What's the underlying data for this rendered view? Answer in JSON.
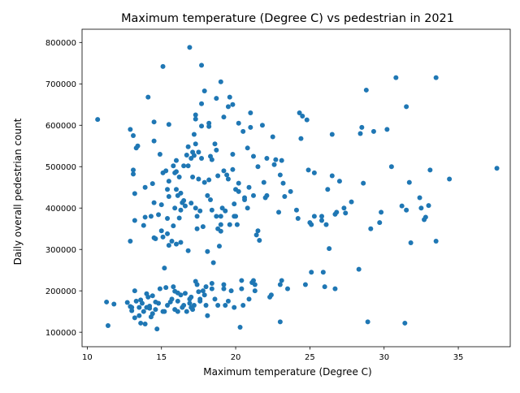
{
  "chart_data": {
    "type": "scatter",
    "title": "Maximum temperature (Degree C) vs pedestrian in 2021",
    "xlabel": "Maximum temperature (Degree C)",
    "ylabel": "Daily overall pedestrian count",
    "xlim": [
      9.65,
      38.5
    ],
    "ylim": [
      65000,
      832000
    ],
    "xticks": [
      10,
      15,
      20,
      25,
      30,
      35
    ],
    "yticks": [
      100000,
      200000,
      300000,
      400000,
      500000,
      600000,
      700000,
      800000
    ],
    "xtick_labels": [
      "10",
      "15",
      "20",
      "25",
      "30",
      "35"
    ],
    "ytick_labels": [
      "100000",
      "200000",
      "300000",
      "400000",
      "500000",
      "600000",
      "700000",
      "800000"
    ],
    "grid": false,
    "legend": "none",
    "marker_color": "#1f77b4",
    "points": [
      [
        10.7,
        614000
      ],
      [
        11.3,
        173000
      ],
      [
        11.4,
        116000
      ],
      [
        11.8,
        168000
      ],
      [
        12.7,
        172000
      ],
      [
        12.9,
        590000
      ],
      [
        12.9,
        320000
      ],
      [
        13.0,
        160000
      ],
      [
        13.0,
        152000
      ],
      [
        13.1,
        575000
      ],
      [
        13.1,
        492000
      ],
      [
        13.1,
        482000
      ],
      [
        13.2,
        435000
      ],
      [
        13.2,
        370000
      ],
      [
        13.2,
        200000
      ],
      [
        13.2,
        135000
      ],
      [
        13.3,
        545000
      ],
      [
        13.4,
        550000
      ],
      [
        13.5,
        160000
      ],
      [
        13.6,
        178000
      ],
      [
        13.6,
        122000
      ],
      [
        13.7,
        170000
      ],
      [
        13.8,
        358000
      ],
      [
        13.8,
        150000
      ],
      [
        13.9,
        450000
      ],
      [
        13.9,
        378000
      ],
      [
        14.0,
        193000
      ],
      [
        14.1,
        668000
      ],
      [
        14.1,
        185000
      ],
      [
        14.2,
        163000
      ],
      [
        14.3,
        380000
      ],
      [
        14.3,
        137000
      ],
      [
        14.4,
        459000
      ],
      [
        14.4,
        188000
      ],
      [
        14.5,
        608000
      ],
      [
        14.5,
        562000
      ],
      [
        14.5,
        413000
      ],
      [
        14.5,
        328000
      ],
      [
        14.6,
        326000
      ],
      [
        14.6,
        173000
      ],
      [
        14.6,
        155000
      ],
      [
        14.7,
        108000
      ],
      [
        14.8,
        384000
      ],
      [
        14.9,
        530000
      ],
      [
        14.9,
        205000
      ],
      [
        15.0,
        408000
      ],
      [
        15.0,
        345000
      ],
      [
        15.1,
        485000
      ],
      [
        15.1,
        742000
      ],
      [
        15.1,
        330000
      ],
      [
        15.1,
        150000
      ],
      [
        15.2,
        255000
      ],
      [
        15.3,
        490000
      ],
      [
        15.3,
        208000
      ],
      [
        15.4,
        445000
      ],
      [
        15.4,
        375000
      ],
      [
        15.4,
        338000
      ],
      [
        15.5,
        602000
      ],
      [
        15.5,
        465000
      ],
      [
        15.5,
        428000
      ],
      [
        15.5,
        310000
      ],
      [
        15.6,
        173000
      ],
      [
        15.7,
        320000
      ],
      [
        15.8,
        502000
      ],
      [
        15.8,
        357000
      ],
      [
        15.9,
        485000
      ],
      [
        15.9,
        400000
      ],
      [
        15.9,
        199000
      ],
      [
        15.9,
        155000
      ],
      [
        16.0,
        515000
      ],
      [
        16.0,
        488000
      ],
      [
        16.0,
        445000
      ],
      [
        16.0,
        313000
      ],
      [
        16.1,
        430000
      ],
      [
        16.1,
        195000
      ],
      [
        16.1,
        175000
      ],
      [
        16.1,
        150000
      ],
      [
        16.2,
        475000
      ],
      [
        16.2,
        376000
      ],
      [
        16.3,
        436000
      ],
      [
        16.3,
        395000
      ],
      [
        16.3,
        317000
      ],
      [
        16.4,
        413000
      ],
      [
        16.4,
        160000
      ],
      [
        16.5,
        502000
      ],
      [
        16.5,
        418000
      ],
      [
        16.6,
        405000
      ],
      [
        16.6,
        194000
      ],
      [
        16.7,
        528000
      ],
      [
        16.8,
        548000
      ],
      [
        16.8,
        502000
      ],
      [
        16.8,
        297000
      ],
      [
        16.9,
        788000
      ],
      [
        16.9,
        180000
      ],
      [
        17.0,
        520000
      ],
      [
        17.0,
        412000
      ],
      [
        17.0,
        185000
      ],
      [
        17.1,
        535000
      ],
      [
        17.1,
        475000
      ],
      [
        17.1,
        155000
      ],
      [
        17.2,
        578000
      ],
      [
        17.2,
        527000
      ],
      [
        17.2,
        165000
      ],
      [
        17.3,
        625000
      ],
      [
        17.3,
        615000
      ],
      [
        17.3,
        555000
      ],
      [
        17.3,
        400000
      ],
      [
        17.3,
        223000
      ],
      [
        17.4,
        350000
      ],
      [
        17.4,
        380000
      ],
      [
        17.4,
        215000
      ],
      [
        17.5,
        535000
      ],
      [
        17.5,
        470000
      ],
      [
        17.5,
        198000
      ],
      [
        17.6,
        393000
      ],
      [
        17.6,
        180000
      ],
      [
        17.7,
        745000
      ],
      [
        17.7,
        652000
      ],
      [
        17.7,
        598000
      ],
      [
        17.7,
        520000
      ],
      [
        17.8,
        355000
      ],
      [
        17.8,
        200000
      ],
      [
        17.9,
        683000
      ],
      [
        17.9,
        462000
      ],
      [
        18.0,
        210000
      ],
      [
        18.0,
        165000
      ],
      [
        18.1,
        430000
      ],
      [
        18.1,
        295000
      ],
      [
        18.1,
        140000
      ],
      [
        18.2,
        605000
      ],
      [
        18.2,
        597000
      ],
      [
        18.2,
        468000
      ],
      [
        18.3,
        420000
      ],
      [
        18.3,
        525000
      ],
      [
        18.4,
        517000
      ],
      [
        18.4,
        395000
      ],
      [
        18.4,
        205000
      ],
      [
        18.5,
        268000
      ],
      [
        18.6,
        555000
      ],
      [
        18.7,
        665000
      ],
      [
        18.7,
        540000
      ],
      [
        18.7,
        380000
      ],
      [
        18.8,
        478000
      ],
      [
        18.8,
        350000
      ],
      [
        18.9,
        308000
      ],
      [
        19.0,
        705000
      ],
      [
        19.0,
        360000
      ],
      [
        19.0,
        344000
      ],
      [
        19.1,
        400000
      ],
      [
        19.2,
        620000
      ],
      [
        19.2,
        490000
      ],
      [
        19.2,
        205000
      ],
      [
        19.2,
        215000
      ],
      [
        19.3,
        393000
      ],
      [
        19.4,
        480000
      ],
      [
        19.5,
        645000
      ],
      [
        19.5,
        470000
      ],
      [
        19.6,
        668000
      ],
      [
        19.6,
        360000
      ],
      [
        19.7,
        200000
      ],
      [
        19.8,
        650000
      ],
      [
        19.8,
        530000
      ],
      [
        19.8,
        493000
      ],
      [
        19.9,
        380000
      ],
      [
        19.9,
        410000
      ],
      [
        20.0,
        380000
      ],
      [
        20.0,
        445000
      ],
      [
        20.1,
        360000
      ],
      [
        20.2,
        605000
      ],
      [
        20.2,
        460000
      ],
      [
        20.2,
        440000
      ],
      [
        20.3,
        112000
      ],
      [
        20.4,
        225000
      ],
      [
        20.4,
        205000
      ],
      [
        20.5,
        585000
      ],
      [
        20.6,
        420000
      ],
      [
        20.6,
        425000
      ],
      [
        20.8,
        545000
      ],
      [
        20.9,
        450000
      ],
      [
        21.0,
        630000
      ],
      [
        21.0,
        595000
      ],
      [
        21.1,
        220000
      ],
      [
        21.2,
        525000
      ],
      [
        21.2,
        225000
      ],
      [
        21.3,
        215000
      ],
      [
        21.3,
        200000
      ],
      [
        21.4,
        335000
      ],
      [
        21.5,
        345000
      ],
      [
        21.6,
        322000
      ],
      [
        21.8,
        600000
      ],
      [
        21.9,
        462000
      ],
      [
        22.0,
        425000
      ],
      [
        22.1,
        520000
      ],
      [
        22.1,
        430000
      ],
      [
        22.3,
        185000
      ],
      [
        22.5,
        572000
      ],
      [
        22.7,
        517000
      ],
      [
        23.0,
        125000
      ],
      [
        23.0,
        215000
      ],
      [
        23.1,
        515000
      ],
      [
        23.2,
        460000
      ],
      [
        23.3,
        428000
      ],
      [
        23.5,
        205000
      ],
      [
        23.7,
        440000
      ],
      [
        24.2,
        375000
      ],
      [
        24.3,
        630000
      ],
      [
        24.4,
        568000
      ],
      [
        24.5,
        622000
      ],
      [
        24.8,
        613000
      ],
      [
        24.9,
        492000
      ],
      [
        25.0,
        365000
      ],
      [
        25.1,
        245000
      ],
      [
        25.1,
        360000
      ],
      [
        25.3,
        485000
      ],
      [
        25.8,
        380000
      ],
      [
        25.8,
        370000
      ],
      [
        25.9,
        245000
      ],
      [
        26.0,
        210000
      ],
      [
        26.1,
        360000
      ],
      [
        26.2,
        445000
      ],
      [
        26.3,
        302000
      ],
      [
        26.5,
        578000
      ],
      [
        26.5,
        478000
      ],
      [
        26.7,
        385000
      ],
      [
        26.8,
        390000
      ],
      [
        27.0,
        465000
      ],
      [
        27.3,
        400000
      ],
      [
        27.4,
        388000
      ],
      [
        27.8,
        415000
      ],
      [
        28.3,
        252000
      ],
      [
        28.4,
        580000
      ],
      [
        28.5,
        595000
      ],
      [
        28.6,
        460000
      ],
      [
        28.8,
        685000
      ],
      [
        28.9,
        125000
      ],
      [
        29.1,
        350000
      ],
      [
        29.3,
        585000
      ],
      [
        29.7,
        365000
      ],
      [
        29.8,
        390000
      ],
      [
        30.2,
        590000
      ],
      [
        30.5,
        500000
      ],
      [
        30.8,
        715000
      ],
      [
        31.2,
        405000
      ],
      [
        31.4,
        122000
      ],
      [
        31.5,
        645000
      ],
      [
        31.5,
        395000
      ],
      [
        31.7,
        462000
      ],
      [
        31.8,
        316000
      ],
      [
        32.4,
        425000
      ],
      [
        32.5,
        400000
      ],
      [
        32.7,
        372000
      ],
      [
        32.8,
        378000
      ],
      [
        33.0,
        406000
      ],
      [
        33.1,
        492000
      ],
      [
        33.5,
        715000
      ],
      [
        33.5,
        320000
      ],
      [
        34.4,
        470000
      ],
      [
        37.6,
        496000
      ],
      [
        15.2,
        150000
      ],
      [
        13.9,
        120000
      ],
      [
        16.5,
        165000
      ],
      [
        14.2,
        158000
      ],
      [
        17.0,
        160000
      ],
      [
        15.7,
        180000
      ],
      [
        18.6,
        180000
      ],
      [
        19.3,
        165000
      ],
      [
        20.9,
        180000
      ],
      [
        16.3,
        190000
      ],
      [
        14.8,
        170000
      ],
      [
        17.6,
        175000
      ],
      [
        15.4,
        165000
      ],
      [
        13.5,
        140000
      ],
      [
        16.9,
        170000
      ],
      [
        19.5,
        175000
      ],
      [
        20.5,
        165000
      ],
      [
        22.4,
        190000
      ],
      [
        23.1,
        225000
      ],
      [
        24.7,
        215000
      ],
      [
        18.8,
        165000
      ],
      [
        17.9,
        190000
      ],
      [
        14.0,
        160000
      ],
      [
        12.9,
        162000
      ],
      [
        13.3,
        175000
      ],
      [
        14.4,
        145000
      ],
      [
        15.8,
        210000
      ],
      [
        16.7,
        150000
      ],
      [
        18.4,
        218000
      ],
      [
        19.9,
        160000
      ],
      [
        26.7,
        205000
      ],
      [
        21.2,
        430000
      ],
      [
        23.0,
        480000
      ],
      [
        22.6,
        505000
      ],
      [
        21.5,
        500000
      ],
      [
        22.9,
        390000
      ],
      [
        20.8,
        400000
      ],
      [
        19.0,
        380000
      ],
      [
        24.1,
        395000
      ],
      [
        25.3,
        380000
      ]
    ]
  }
}
